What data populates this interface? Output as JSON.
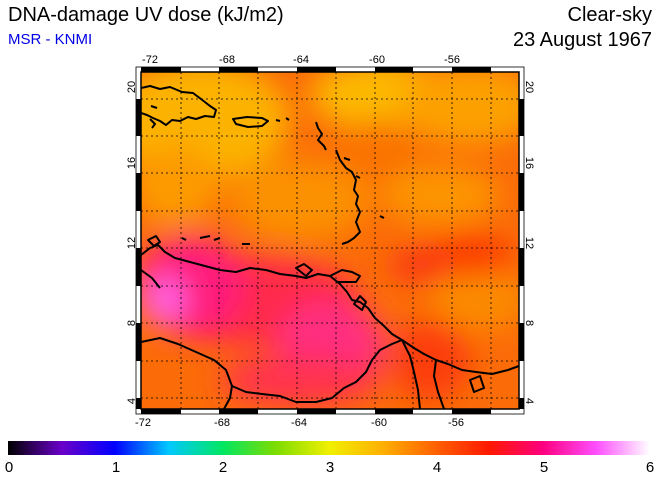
{
  "header": {
    "title": "DNA-damage UV dose (kJ/m2)",
    "credit": "MSR - KNMI",
    "condition": "Clear-sky",
    "date": "23 August 1967"
  },
  "map": {
    "lon_ticks": [
      "-72",
      "-68",
      "-64",
      "-60",
      "-56"
    ],
    "lat_ticks": [
      "4",
      "8",
      "12",
      "16",
      "20"
    ],
    "region": "Caribbean / northern South America",
    "grid_style": "dotted",
    "palette_colors": {
      "ocean_high": "#fa6a00",
      "north_low": "#fcb300",
      "land_peak": "#ff2b8a"
    }
  },
  "colorbar": {
    "labels": [
      "0",
      "1",
      "2",
      "3",
      "4",
      "5",
      "6"
    ],
    "gradient_stops": [
      "#000000",
      "#6a00c8",
      "#0000ff",
      "#00c8ff",
      "#00e664",
      "#7ddc00",
      "#f0f000",
      "#ffb000",
      "#ff6000",
      "#ff1800",
      "#ff0080",
      "#ff50ff",
      "#ffffff"
    ]
  }
}
